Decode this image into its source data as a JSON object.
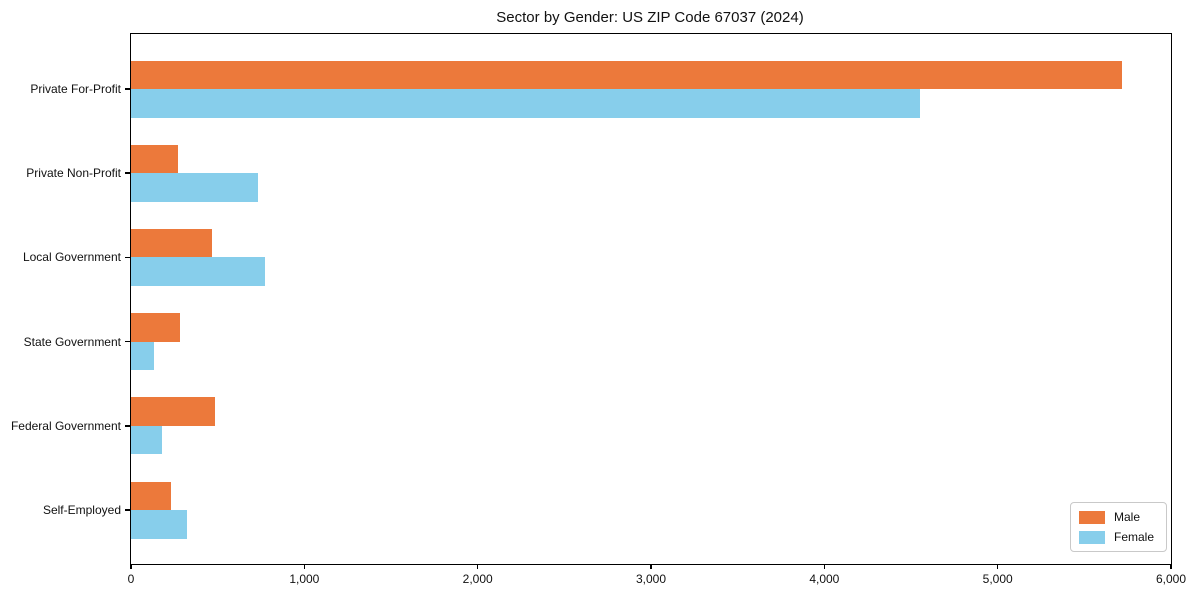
{
  "title": "Sector by Gender: US ZIP Code 67037 (2024)",
  "chart_data": {
    "type": "bar",
    "orientation": "horizontal",
    "title": "Sector by Gender: US ZIP Code 67037 (2024)",
    "xlabel": "",
    "ylabel": "",
    "categories": [
      "Private For-Profit",
      "Private Non-Profit",
      "Local Government",
      "State Government",
      "Federal Government",
      "Self-Employed"
    ],
    "series": [
      {
        "name": "Male",
        "color": "#EC793B",
        "values": [
          5720,
          270,
          470,
          280,
          485,
          230
        ]
      },
      {
        "name": "Female",
        "color": "#87CEEB",
        "values": [
          4550,
          730,
          775,
          130,
          180,
          325
        ]
      }
    ],
    "xlim": [
      0,
      6000
    ],
    "xticks": [
      0,
      1000,
      2000,
      3000,
      4000,
      5000,
      6000
    ],
    "xticklabels": [
      "0",
      "1,000",
      "2,000",
      "3,000",
      "4,000",
      "5,000",
      "6,000"
    ],
    "grid": false,
    "legend_position": "lower right"
  }
}
